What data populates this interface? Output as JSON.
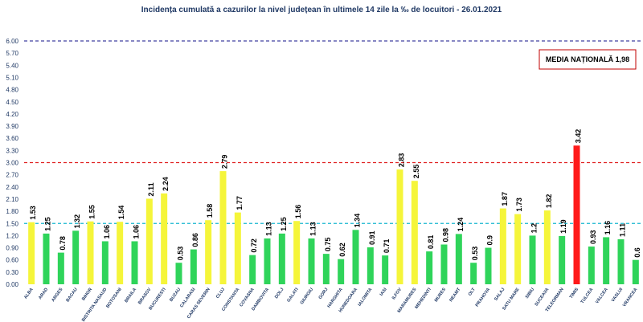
{
  "chart_data": {
    "type": "bar",
    "title": "Incidența cumulată a cazurilor la nivel județean în ultimele 14 zile la ‰ de locuitori - 26.01.2021",
    "xlabel": "",
    "ylabel": "",
    "ylim": [
      0,
      6.0
    ],
    "yticks": [
      "0.00",
      "0.30",
      "0.60",
      "0.90",
      "1.20",
      "1.50",
      "1.80",
      "2.10",
      "2.40",
      "2.70",
      "3.00",
      "3.30",
      "3.60",
      "3.90",
      "4.20",
      "4.50",
      "4.80",
      "5.10",
      "5.40",
      "5.70",
      "6.00"
    ],
    "grid": false,
    "categories": [
      "ALBA",
      "ARAD",
      "ARGES",
      "BACAU",
      "BIHOR",
      "BISTRITA NASAUD",
      "BOTOSANI",
      "BRAILA",
      "BRASOV",
      "BUCURESTI",
      "BUZAU",
      "CALARASI",
      "CARAS SEVERIN",
      "CLUJ",
      "CONSTANTA",
      "COVASNA",
      "DAMBOVITA",
      "DOLJ",
      "GALATI",
      "GIURGIU",
      "GORJ",
      "HARGHITA",
      "HUNEDOARA",
      "IALOMITA",
      "IASI",
      "ILFOV",
      "MARAMURES",
      "MEHEDINTI",
      "MURES",
      "NEAMT",
      "OLT",
      "PRAHOVA",
      "SALAJ",
      "SATU MARE",
      "SIBIU",
      "SUCEAVA",
      "TELEORMAN",
      "TIMIS",
      "TULCEA",
      "VALCEA",
      "VASLUI",
      "VRANCEA"
    ],
    "values": [
      1.53,
      1.25,
      0.78,
      1.32,
      1.55,
      1.06,
      1.54,
      1.06,
      2.11,
      2.24,
      0.53,
      0.86,
      1.58,
      2.79,
      1.77,
      0.72,
      1.13,
      1.25,
      1.56,
      1.13,
      0.75,
      0.62,
      1.34,
      0.91,
      0.71,
      2.83,
      2.55,
      0.81,
      0.98,
      1.24,
      0.53,
      0.9,
      1.87,
      1.73,
      1.2,
      1.82,
      1.19,
      3.42,
      0.93,
      1.16,
      1.11,
      0.6
    ],
    "value_labels": [
      "1.53",
      "1.25",
      "0.78",
      "1.32",
      "1.55",
      "1.06",
      "1.54",
      "1.06",
      "2.11",
      "2.24",
      "0.53",
      "0.86",
      "1.58",
      "2.79",
      "1.77",
      "0.72",
      "1.13",
      "1.25",
      "1.56",
      "1.13",
      "0.75",
      "0.62",
      "1.34",
      "0.91",
      "0.71",
      "2.83",
      "2.55",
      "0.81",
      "0.98",
      "1.24",
      "0.53",
      "0.9",
      "1.87",
      "1.73",
      "1.2",
      "1.82",
      "1.19",
      "3.42",
      "0.93",
      "1.16",
      "1.11",
      "0.6"
    ],
    "thresholds": [
      {
        "value": 1.5,
        "color": "#19b8d0",
        "style": "dashed"
      },
      {
        "value": 3.0,
        "color": "#e02020",
        "style": "dashed"
      },
      {
        "value": 6.0,
        "color": "#4040a0",
        "style": "dashed"
      }
    ],
    "colors": {
      "low": "#2fd45a",
      "mid": "#f5f53a",
      "high": "#ff1a1a"
    },
    "media_label": "MEDIA NAȚIONALĂ  1,98"
  }
}
